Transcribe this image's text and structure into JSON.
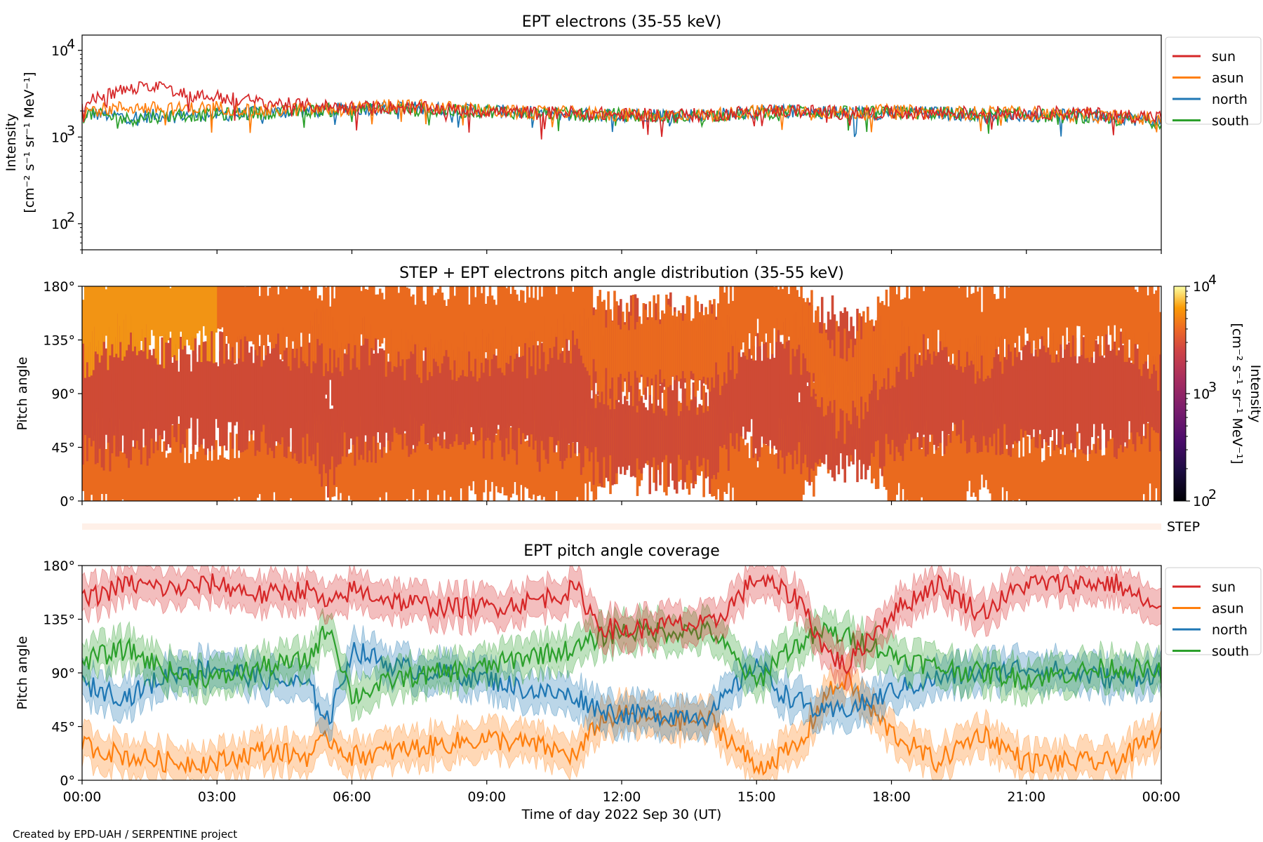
{
  "figure": {
    "credit": "Created by EPD-UAH / SERPENTINE project",
    "colors": {
      "sun": "#d62728",
      "asun": "#ff7f0e",
      "north": "#1f77b4",
      "south": "#2ca02c"
    }
  },
  "chart_data": [
    {
      "id": "panel1",
      "type": "line",
      "title": "EPT electrons (35-55 keV)",
      "ylabel_line1": "Intensity",
      "ylabel_line2": "[cm⁻² s⁻¹ sr⁻¹ MeV⁻¹]",
      "yscale": "log",
      "ylim": [
        50,
        15000
      ],
      "yticks": [
        {
          "value": 100,
          "base": "10",
          "exp": "2"
        },
        {
          "value": 1000,
          "base": "10",
          "exp": "3"
        },
        {
          "value": 10000,
          "base": "10",
          "exp": "4"
        }
      ],
      "x_range_hours": [
        0,
        24
      ],
      "grid": false,
      "legend_position": "outside-right",
      "series": [
        {
          "name": "sun",
          "color": "#d62728",
          "x_hours": [
            0,
            0.5,
            1,
            1.5,
            1.75,
            2,
            2.5,
            3,
            3.5,
            4,
            5,
            6,
            7,
            8,
            9,
            10,
            11,
            12,
            13,
            14,
            15,
            16,
            17,
            18,
            19,
            20,
            21,
            22,
            23,
            24
          ],
          "values": [
            2300,
            3100,
            3500,
            3800,
            4200,
            3300,
            3000,
            2900,
            2700,
            2500,
            2300,
            2200,
            2200,
            2100,
            2000,
            1900,
            1900,
            1800,
            1800,
            1800,
            2000,
            2000,
            1900,
            1900,
            1900,
            1900,
            1900,
            1900,
            1800,
            1700
          ]
        },
        {
          "name": "asun",
          "color": "#ff7f0e",
          "x_hours": [
            0,
            1,
            2,
            3,
            4,
            5,
            6,
            7,
            8,
            9,
            10,
            11,
            12,
            13,
            14,
            15,
            16,
            17,
            18,
            19,
            20,
            21,
            22,
            23,
            24
          ],
          "values": [
            2000,
            2200,
            2100,
            2200,
            2000,
            2100,
            2100,
            2300,
            2200,
            2000,
            1900,
            1900,
            1800,
            1800,
            1800,
            2000,
            2000,
            1900,
            2000,
            1900,
            1900,
            1900,
            1800,
            1700,
            1600
          ]
        },
        {
          "name": "north",
          "color": "#1f77b4",
          "x_hours": [
            0,
            1,
            2,
            3,
            4,
            5,
            6,
            7,
            8,
            9,
            10,
            11,
            12,
            13,
            14,
            15,
            16,
            17,
            18,
            19,
            20,
            21,
            22,
            23,
            24
          ],
          "values": [
            1900,
            1700,
            1800,
            1800,
            1900,
            2000,
            2100,
            2200,
            2100,
            2000,
            1900,
            1800,
            1800,
            1800,
            1800,
            1900,
            2000,
            1900,
            1900,
            1900,
            1800,
            1800,
            1800,
            1700,
            1500
          ]
        },
        {
          "name": "south",
          "color": "#2ca02c",
          "x_hours": [
            0,
            1,
            2,
            3,
            4,
            5,
            6,
            7,
            8,
            9,
            10,
            11,
            12,
            13,
            14,
            15,
            16,
            17,
            18,
            19,
            20,
            21,
            22,
            23,
            24
          ],
          "values": [
            1900,
            1600,
            1800,
            1800,
            1900,
            2000,
            2100,
            2100,
            2000,
            2000,
            1900,
            1800,
            1800,
            1700,
            1800,
            1900,
            2000,
            1900,
            1900,
            1900,
            1800,
            1800,
            1700,
            1600,
            1500
          ]
        }
      ]
    },
    {
      "id": "panel2",
      "type": "heatmap",
      "title": "STEP + EPT electrons pitch angle distribution (35-55 keV)",
      "ylabel": "Pitch angle",
      "ylim_deg": [
        0,
        180
      ],
      "yticks": [
        "0°",
        "45°",
        "90°",
        "135°",
        "180°"
      ],
      "x_range_hours": [
        0,
        24
      ],
      "colormap": "inferno",
      "colorbar": {
        "scale": "log",
        "range": [
          100,
          10000
        ],
        "label_line1": "Intensity",
        "label_line2": "[cm⁻² s⁻¹ sr⁻¹ MeV⁻¹]",
        "ticks": [
          {
            "value": 100,
            "base": "10",
            "exp": "2"
          },
          {
            "value": 1000,
            "base": "10",
            "exp": "3"
          },
          {
            "value": 10000,
            "base": "10",
            "exp": "4"
          }
        ]
      },
      "step_strip_label": "STEP",
      "color_classes": {
        "high": "#f29414",
        "mid": "#ea6a1e",
        "low": "#cf4a35"
      }
    },
    {
      "id": "panel3",
      "type": "line",
      "title": "EPT pitch angle coverage",
      "ylabel": "Pitch angle",
      "ylim_deg": [
        0,
        180
      ],
      "yticks": [
        "0°",
        "45°",
        "90°",
        "135°",
        "180°"
      ],
      "xlabel": "Time of day 2022 Sep 30 (UT)",
      "xticks": [
        "00:00",
        "03:00",
        "06:00",
        "09:00",
        "12:00",
        "15:00",
        "18:00",
        "21:00",
        "00:00"
      ],
      "legend_position": "outside-right",
      "band_halfwidth_deg": 15,
      "series": [
        {
          "name": "sun",
          "color": "#d62728",
          "x_hours": [
            0,
            1,
            2,
            3,
            4,
            5,
            5.5,
            6,
            7,
            8,
            9,
            10,
            11,
            11.5,
            12,
            13,
            14,
            15,
            15.5,
            16,
            16.5,
            17,
            17.5,
            18,
            19,
            20,
            21,
            22,
            23,
            24
          ],
          "values_deg": [
            150,
            165,
            160,
            165,
            155,
            160,
            145,
            160,
            150,
            145,
            145,
            150,
            160,
            130,
            125,
            130,
            130,
            170,
            160,
            150,
            110,
            95,
            120,
            140,
            165,
            140,
            165,
            165,
            165,
            140
          ]
        },
        {
          "name": "asun",
          "color": "#ff7f0e",
          "x_hours": [
            0,
            1,
            2,
            3,
            4,
            5,
            5.5,
            6,
            7,
            8,
            9,
            10,
            11,
            11.5,
            12,
            13,
            14,
            15,
            15.5,
            16,
            16.5,
            17,
            17.5,
            18,
            19,
            20,
            21,
            22,
            23,
            24
          ],
          "values_deg": [
            30,
            20,
            15,
            15,
            25,
            20,
            35,
            20,
            25,
            30,
            35,
            30,
            20,
            50,
            55,
            50,
            50,
            10,
            20,
            30,
            70,
            85,
            60,
            40,
            15,
            40,
            15,
            15,
            15,
            40
          ]
        },
        {
          "name": "north",
          "color": "#1f77b4",
          "x_hours": [
            0,
            1,
            2,
            3,
            4,
            5,
            5.5,
            6,
            7,
            8,
            9,
            10,
            11,
            11.5,
            12,
            13,
            14,
            15,
            15.5,
            16,
            16.5,
            17,
            17.5,
            18,
            19,
            20,
            21,
            22,
            23,
            24
          ],
          "values_deg": [
            80,
            70,
            90,
            95,
            85,
            80,
            50,
            110,
            95,
            90,
            85,
            75,
            70,
            60,
            55,
            55,
            55,
            100,
            75,
            65,
            55,
            60,
            65,
            75,
            85,
            90,
            95,
            90,
            85,
            90
          ]
        },
        {
          "name": "south",
          "color": "#2ca02c",
          "x_hours": [
            0,
            1,
            2,
            3,
            4,
            5,
            5.5,
            6,
            7,
            8,
            9,
            10,
            11,
            11.5,
            12,
            13,
            14,
            15,
            15.5,
            16,
            16.5,
            17,
            17.5,
            18,
            19,
            20,
            21,
            22,
            23,
            24
          ],
          "values_deg": [
            100,
            110,
            90,
            85,
            95,
            100,
            130,
            70,
            85,
            90,
            95,
            105,
            110,
            120,
            125,
            125,
            125,
            80,
            105,
            115,
            125,
            120,
            115,
            105,
            95,
            90,
            85,
            90,
            95,
            90
          ]
        }
      ]
    }
  ]
}
